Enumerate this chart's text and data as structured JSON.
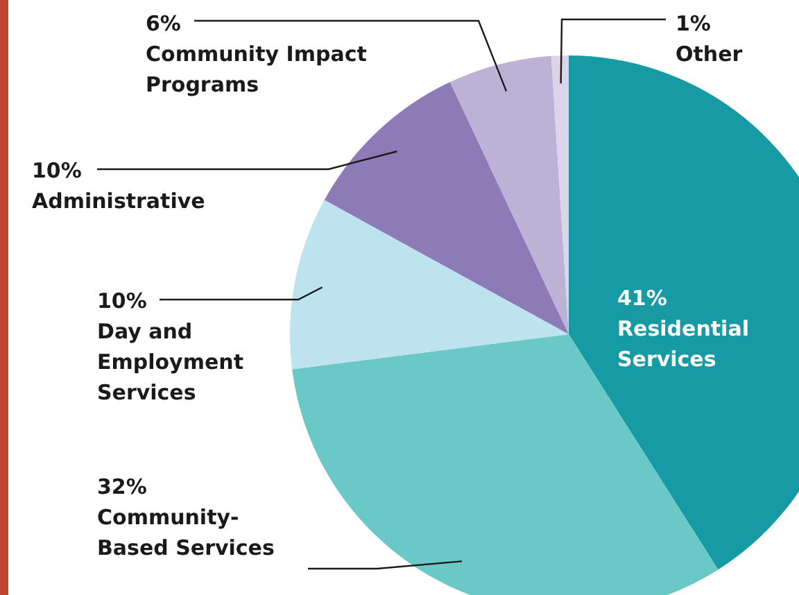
{
  "chart_data": {
    "type": "pie",
    "categories": [
      "Residential Services",
      "Community-Based Services",
      "Day and Employment Services",
      "Administrative",
      "Community Impact Programs",
      "Other"
    ],
    "values": [
      41,
      32,
      10,
      10,
      6,
      1
    ],
    "colors": [
      "#169ba5",
      "#6ac8c6",
      "#bde3ef",
      "#8d7bb8",
      "#bcb2d6",
      "#dcd5ea"
    ],
    "value_labels": [
      "41%",
      "32%",
      "10%",
      "10%",
      "6%",
      "1%"
    ]
  }
}
